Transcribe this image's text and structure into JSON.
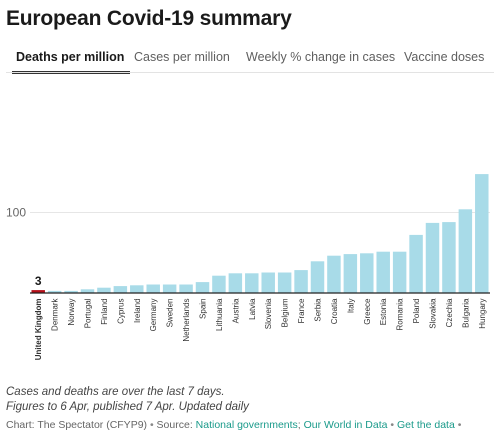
{
  "title": "European Covid-19 summary",
  "tabs": [
    {
      "label": "Deaths per million",
      "active": true
    },
    {
      "label": "Cases per million",
      "active": false
    },
    {
      "label": "Weekly % change in cases",
      "active": false
    },
    {
      "label": "Vaccine doses",
      "active": false
    }
  ],
  "colors": {
    "bar": "#a8dbe8",
    "highlight": "#b5101a",
    "gridline": "#e6e6e6",
    "axis": "#222222",
    "link": "#1a9a8a"
  },
  "chart_data": {
    "type": "bar",
    "title": "",
    "xlabel": "",
    "ylabel": "",
    "ylim": [
      0,
      175
    ],
    "yticks": [
      100
    ],
    "grid": true,
    "highlight": {
      "category": "United Kingdom",
      "label": "3"
    },
    "categories": [
      "United Kingdom",
      "Denmark",
      "Norway",
      "Portugal",
      "Finland",
      "Cyprus",
      "Ireland",
      "Germany",
      "Sweden",
      "Netherlands",
      "Spain",
      "Lithuania",
      "Austria",
      "Latvia",
      "Slovenia",
      "Belgium",
      "France",
      "Serbia",
      "Croatia",
      "Italy",
      "Greece",
      "Estonia",
      "Romania",
      "Poland",
      "Slovakia",
      "Czechia",
      "Bulgaria",
      "Hungary"
    ],
    "values": [
      3,
      2,
      2,
      4,
      6,
      8,
      9,
      10,
      10,
      10,
      13,
      21,
      24,
      24,
      25,
      25,
      28,
      39,
      46,
      48,
      49,
      51,
      51,
      72,
      87,
      88,
      104,
      148
    ]
  },
  "notes": [
    "Cases and deaths are over the last 7 days.",
    "Figures to 6 Apr, published 7 Apr. Updated daily"
  ],
  "source": {
    "prefix": "Chart: The Spectator (CFYP9)",
    "source_label": "Source:",
    "links": [
      "National governments",
      "Our World in Data",
      "Get the data"
    ]
  }
}
